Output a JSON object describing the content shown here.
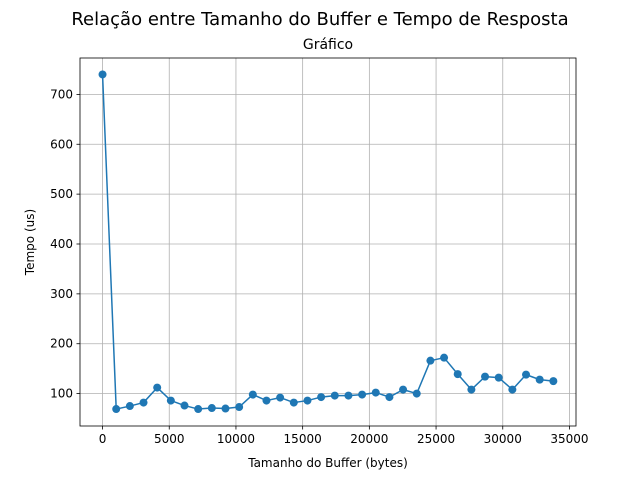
{
  "chart_data": {
    "type": "line",
    "suptitle": "Relação entre Tamanho do Buffer e Tempo de Resposta",
    "title": "Gráfico",
    "xlabel": "Tamanho do Buffer (bytes)",
    "ylabel": "Tempo (us)",
    "xlim": [
      -1690,
      35490
    ],
    "ylim": [
      35,
      773
    ],
    "xticks": [
      0,
      5000,
      10000,
      15000,
      20000,
      25000,
      30000,
      35000
    ],
    "yticks": [
      100,
      200,
      300,
      400,
      500,
      600,
      700
    ],
    "grid": true,
    "marker": "circle",
    "color": "#1f77b4",
    "series": [
      {
        "x": [
          0,
          1024,
          2048,
          3072,
          4096,
          5120,
          6144,
          7168,
          8192,
          9216,
          10240,
          11264,
          12288,
          13312,
          14336,
          15360,
          16384,
          17408,
          18432,
          19456,
          20480,
          21504,
          22528,
          23552,
          24576,
          25600,
          26624,
          27648,
          28672,
          29696,
          30720,
          31744,
          32768,
          33792
        ],
        "y": [
          740,
          69,
          75,
          82,
          112,
          86,
          76,
          69,
          71,
          70,
          73,
          98,
          86,
          92,
          82,
          86,
          93,
          96,
          96,
          98,
          102,
          93,
          108,
          100,
          166,
          172,
          139,
          108,
          134,
          132,
          108,
          138,
          128,
          125
        ]
      }
    ]
  }
}
